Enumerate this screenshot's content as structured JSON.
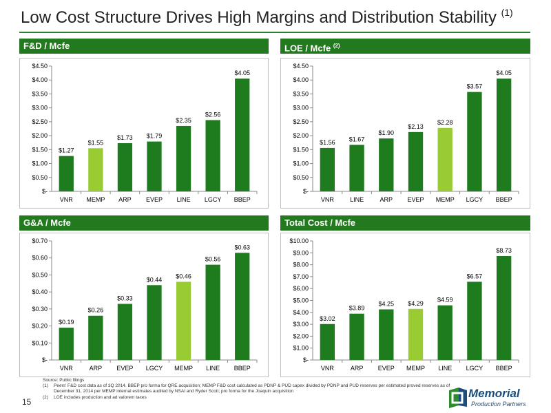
{
  "page": {
    "title": "Low Cost Structure Drives High Margins and Distribution Stability",
    "title_note": "(1)",
    "page_number": "15",
    "colors": {
      "bar": "#1e7b1e",
      "highlight": "#99cc33",
      "header": "#237a1e",
      "rule": "#2e7d32"
    }
  },
  "panels": [
    {
      "header": "F&D / Mcfe",
      "header_note": ""
    },
    {
      "header": "LOE / Mcfe",
      "header_note": "(2)"
    },
    {
      "header": "G&A / Mcfe",
      "header_note": ""
    },
    {
      "header": "Total Cost / Mcfe",
      "header_note": ""
    }
  ],
  "chart_data": [
    {
      "type": "bar",
      "title": "F&D / Mcfe",
      "categories": [
        "VNR",
        "MEMP",
        "ARP",
        "EVEP",
        "LINE",
        "LGCY",
        "BBEP"
      ],
      "values": [
        1.27,
        1.55,
        1.73,
        1.79,
        2.35,
        2.56,
        4.05
      ],
      "labels": [
        "$1.27",
        "$1.55",
        "$1.73",
        "$1.79",
        "$2.35",
        "$2.56",
        "$4.05"
      ],
      "highlight": "MEMP",
      "ylim": [
        0,
        4.5
      ],
      "yticks": [
        "$-",
        "$0.50",
        "$1.00",
        "$1.50",
        "$2.00",
        "$2.50",
        "$3.00",
        "$3.50",
        "$4.00",
        "$4.50"
      ],
      "grid": false,
      "legend": "none"
    },
    {
      "type": "bar",
      "title": "LOE / Mcfe",
      "categories": [
        "VNR",
        "LINE",
        "ARP",
        "EVEP",
        "MEMP",
        "LGCY",
        "BBEP"
      ],
      "values": [
        1.56,
        1.67,
        1.9,
        2.13,
        2.28,
        3.57,
        4.05
      ],
      "labels": [
        "$1.56",
        "$1.67",
        "$1.90",
        "$2.13",
        "$2.28",
        "$3.57",
        "$4.05"
      ],
      "highlight": "MEMP",
      "ylim": [
        0,
        4.5
      ],
      "yticks": [
        "$-",
        "$0.50",
        "$1.00",
        "$1.50",
        "$2.00",
        "$2.50",
        "$3.00",
        "$3.50",
        "$4.00",
        "$4.50"
      ],
      "grid": false,
      "legend": "none"
    },
    {
      "type": "bar",
      "title": "G&A / Mcfe",
      "categories": [
        "VNR",
        "ARP",
        "EVEP",
        "LGCY",
        "MEMP",
        "LINE",
        "BBEP"
      ],
      "values": [
        0.19,
        0.26,
        0.33,
        0.44,
        0.46,
        0.56,
        0.63
      ],
      "labels": [
        "$0.19",
        "$0.26",
        "$0.33",
        "$0.44",
        "$0.46",
        "$0.56",
        "$0.63"
      ],
      "highlight": "MEMP",
      "ylim": [
        0,
        0.7
      ],
      "yticks": [
        "$-",
        "$0.10",
        "$0.20",
        "$0.30",
        "$0.40",
        "$0.50",
        "$0.60",
        "$0.70"
      ],
      "grid": false,
      "legend": "none"
    },
    {
      "type": "bar",
      "title": "Total Cost / Mcfe",
      "categories": [
        "VNR",
        "ARP",
        "EVEP",
        "MEMP",
        "LINE",
        "LGCY",
        "BBEP"
      ],
      "values": [
        3.02,
        3.89,
        4.25,
        4.29,
        4.59,
        6.57,
        8.73
      ],
      "labels": [
        "$3.02",
        "$3.89",
        "$4.25",
        "$4.29",
        "$4.59",
        "$6.57",
        "$8.73"
      ],
      "highlight": "MEMP",
      "ylim": [
        0,
        10
      ],
      "yticks": [
        "$-",
        "$1.00",
        "$2.00",
        "$3.00",
        "$4.00",
        "$5.00",
        "$6.00",
        "$7.00",
        "$8.00",
        "$9.00",
        "$10.00"
      ],
      "grid": false,
      "legend": "none"
    }
  ],
  "footnotes": {
    "source": "Source: Public filings",
    "items": [
      {
        "num": "(1)",
        "text": "Peers' F&D cost data as of 3Q 2014. BBEP pro forma for QRE acquisition; MEMP F&D cost calculated as PDNP & PUD capex divided by PDNP and PUD reserves per estimated proved reserves as of December 31, 2014 per MEMP internal estimates audited by NSAI and Ryder Scott; pro forma for the Joaquin acquisition"
      },
      {
        "num": "(2)",
        "text": "LOE includes production and ad valorem taxes"
      }
    ]
  },
  "logo": {
    "name": "Memorial",
    "subtitle": "Production Partners"
  }
}
